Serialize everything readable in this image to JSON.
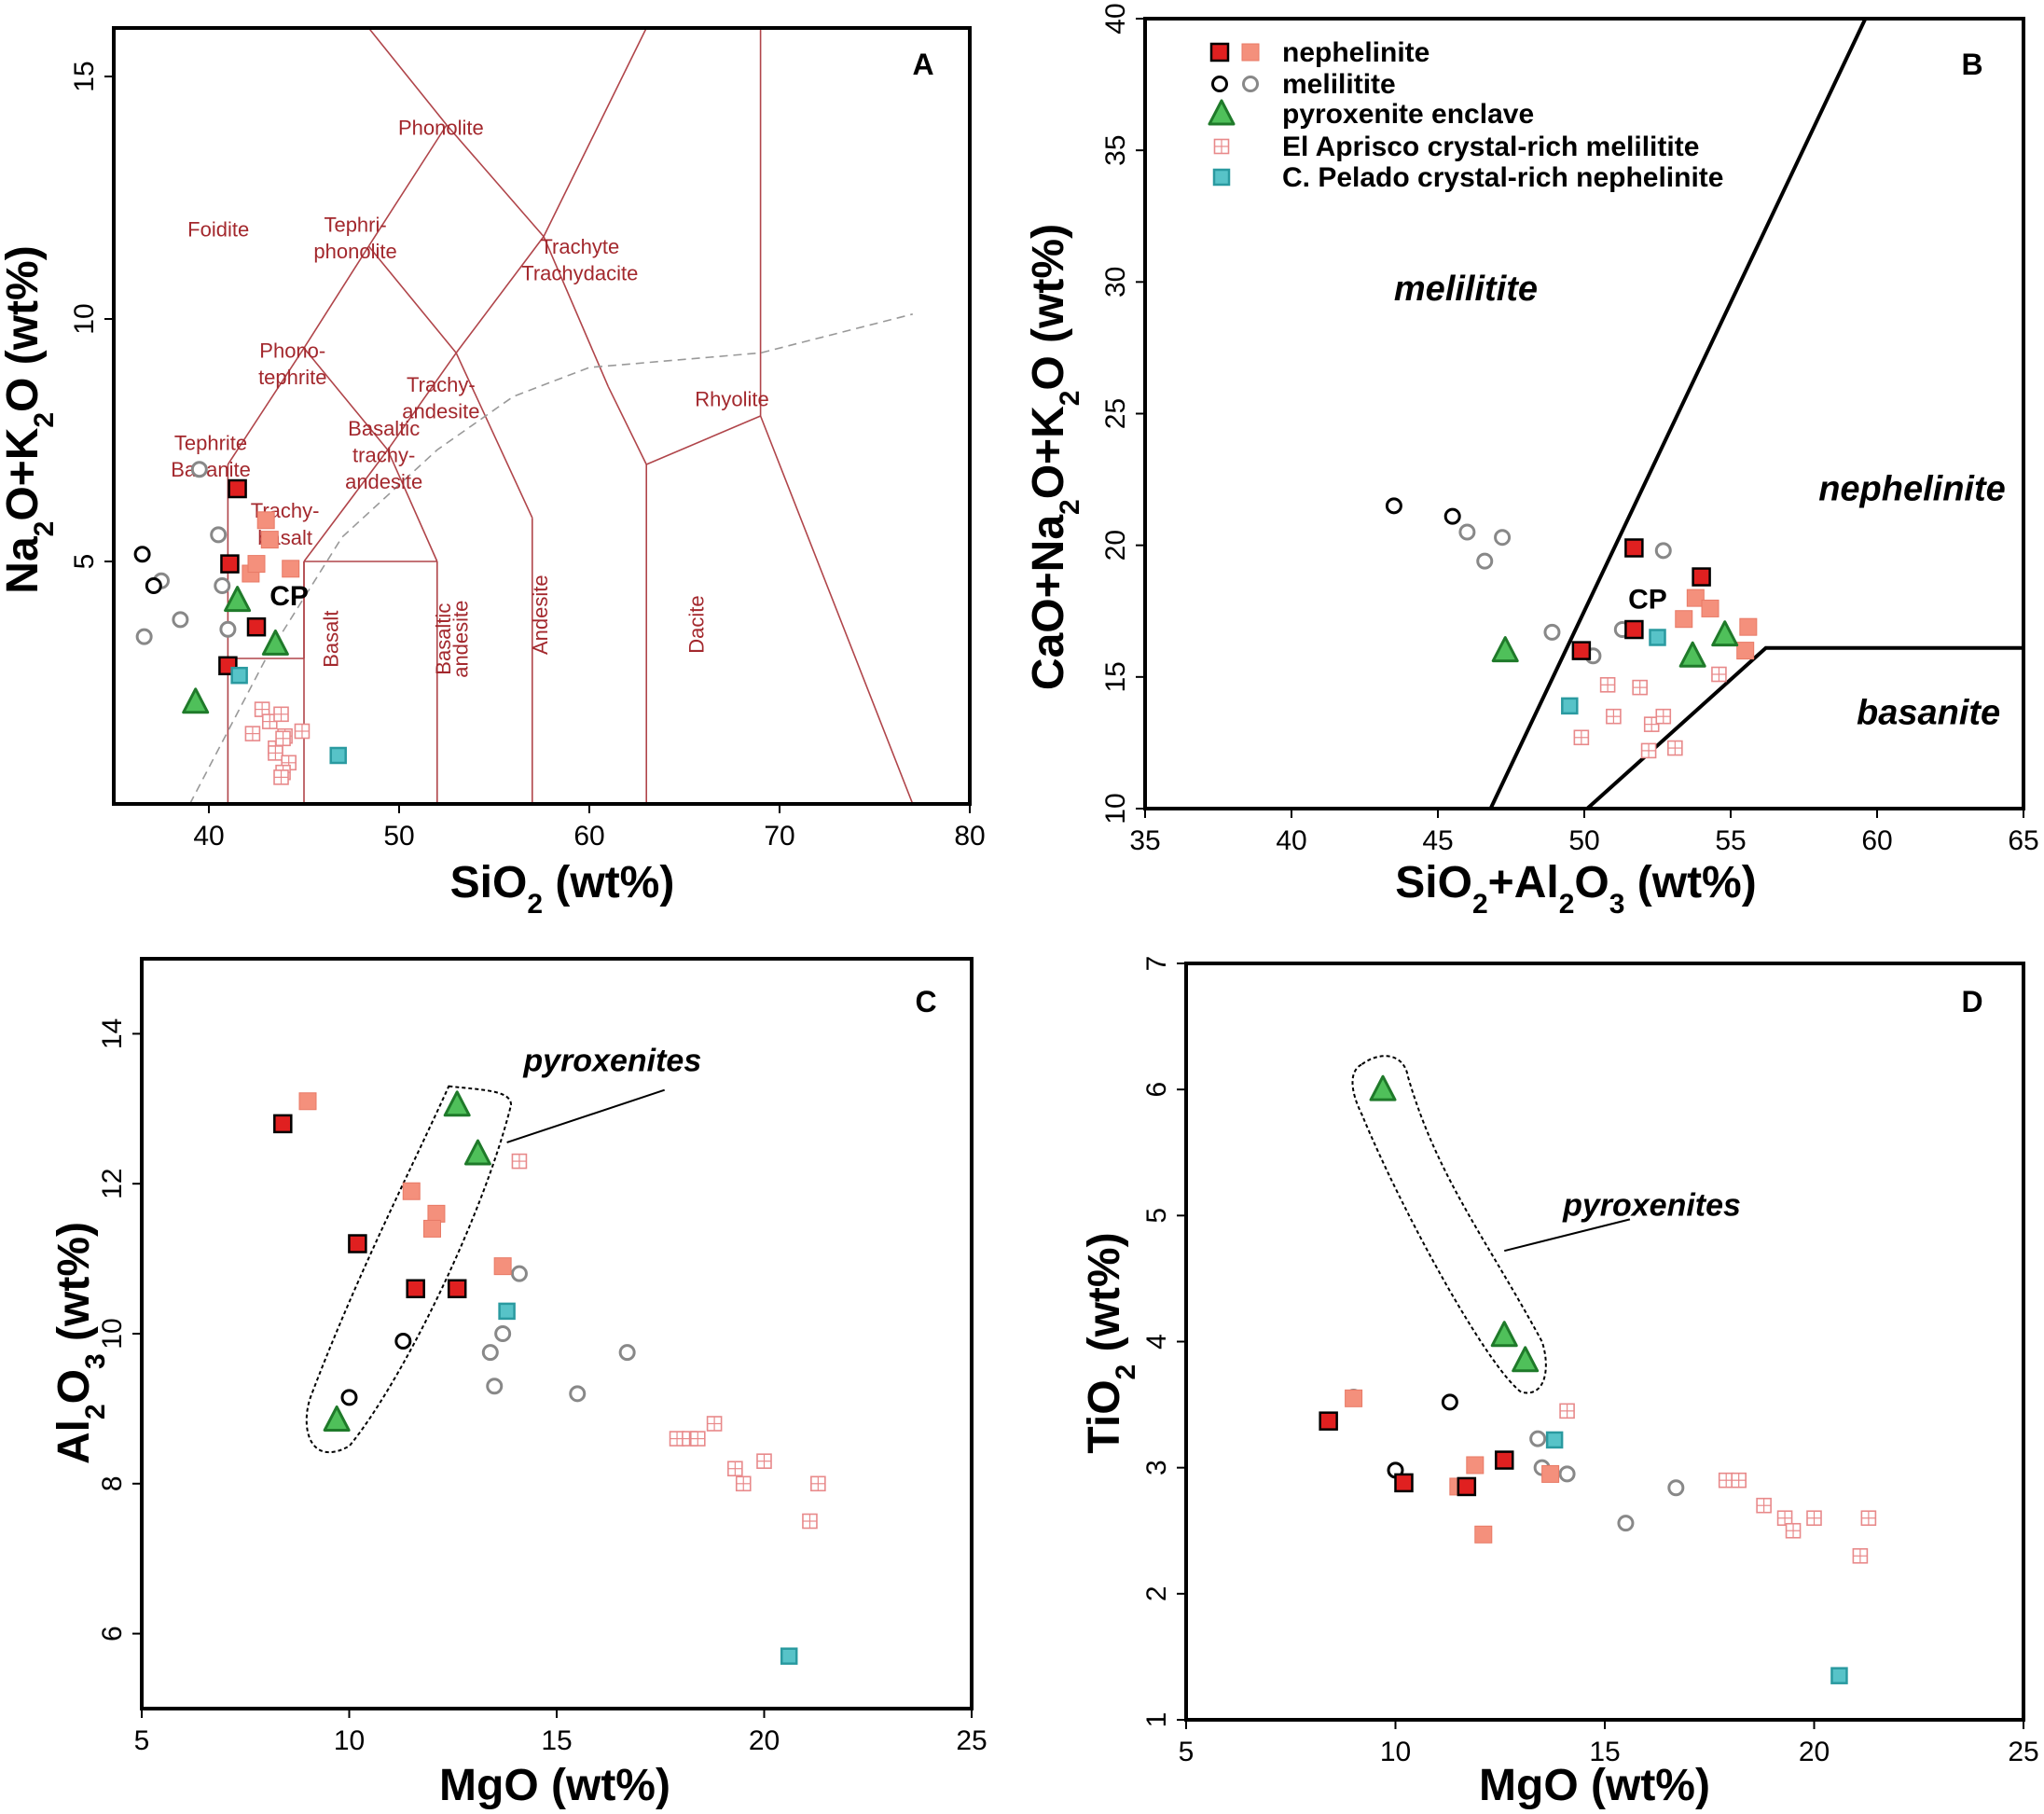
{
  "colors": {
    "nephelinite_dark": "#e02020",
    "nephelinite_light": "#f4907c",
    "melilitite_dark": "#000000",
    "melilitite_light": "#888888",
    "pyroxenite_fill": "#4fc05a",
    "pyroxenite_edge": "#1f7a2a",
    "aprisco": "#e8898a",
    "pelado": "#57c3c8",
    "tas_line": "#b0454a"
  },
  "legend": {
    "items": [
      {
        "label": "nephelinite",
        "symbols": [
          "neph_dark",
          "neph_light"
        ]
      },
      {
        "label": "melilitite",
        "symbols": [
          "mel_dark",
          "mel_light"
        ]
      },
      {
        "label": "pyroxenite enclave",
        "symbols": [
          "pyx"
        ]
      },
      {
        "label": "El Aprisco crystal-rich melilitite",
        "symbols": [
          "apr"
        ]
      },
      {
        "label": "C. Pelado crystal-rich nephelinite",
        "symbols": [
          "pel"
        ]
      }
    ]
  },
  "chart_data": [
    {
      "panel": "A",
      "type": "scatter",
      "xlabel": "SiO₂ (wt%)",
      "ylabel": "Na₂O+K₂O (wt%)",
      "xlim": [
        35,
        80
      ],
      "ylim": [
        0,
        16
      ],
      "xticks": [
        "40",
        "50",
        "60",
        "70",
        "80"
      ],
      "yticks": [
        "5",
        "10",
        "15"
      ],
      "field_labels": [
        {
          "text": "Foidite",
          "x": 40.5,
          "y": 11.7
        },
        {
          "text": "Phonolite",
          "x": 52.2,
          "y": 13.8
        },
        {
          "text": "Tephri-",
          "x": 47.7,
          "y": 11.8
        },
        {
          "text": "phonolite",
          "x": 47.7,
          "y": 11.25
        },
        {
          "text": "Trachyte",
          "x": 59.5,
          "y": 11.35
        },
        {
          "text": "Trachydacite",
          "x": 59.5,
          "y": 10.8
        },
        {
          "text": "Phono-",
          "x": 44.4,
          "y": 9.2
        },
        {
          "text": "tephrite",
          "x": 44.4,
          "y": 8.65
        },
        {
          "text": "Trachy-",
          "x": 52.2,
          "y": 8.5
        },
        {
          "text": "andesite",
          "x": 52.2,
          "y": 7.95
        },
        {
          "text": "Rhyolite",
          "x": 67.5,
          "y": 8.2
        },
        {
          "text": "Tephrite",
          "x": 40.1,
          "y": 7.3
        },
        {
          "text": "Basanite",
          "x": 40.1,
          "y": 6.75
        },
        {
          "text": "Basaltic",
          "x": 49.2,
          "y": 7.6
        },
        {
          "text": "trachy-",
          "x": 49.2,
          "y": 7.05
        },
        {
          "text": "andesite",
          "x": 49.2,
          "y": 6.5
        },
        {
          "text": "Trachy-",
          "x": 44.0,
          "y": 5.9
        },
        {
          "text": "basalt",
          "x": 44.0,
          "y": 5.35
        }
      ],
      "rotated_labels": [
        {
          "text": "Basalt",
          "x": 46.8,
          "y": 3.4
        },
        {
          "text": "Basaltic",
          "x": 52.7,
          "y": 3.4
        },
        {
          "text": "andesite",
          "x": 53.6,
          "y": 3.4
        },
        {
          "text": "Andesite",
          "x": 57.8,
          "y": 3.9
        },
        {
          "text": "Dacite",
          "x": 66.0,
          "y": 3.7
        }
      ],
      "cp_label": {
        "text": "CP",
        "x": 43.2,
        "y": 4.1
      },
      "series": {
        "neph_dark": [
          [
            41.5,
            6.5
          ],
          [
            41.1,
            4.95
          ],
          [
            42.5,
            3.65
          ],
          [
            41.0,
            2.85
          ]
        ],
        "neph_light": [
          [
            42.2,
            4.75
          ],
          [
            42.5,
            4.95
          ],
          [
            43.0,
            5.85
          ],
          [
            43.2,
            5.45
          ],
          [
            44.3,
            4.85
          ]
        ],
        "mel_dark": [
          [
            36.5,
            5.15
          ],
          [
            37.1,
            4.5
          ]
        ],
        "mel_light": [
          [
            39.5,
            6.9
          ],
          [
            40.5,
            5.55
          ],
          [
            40.7,
            4.5
          ],
          [
            41.0,
            3.6
          ],
          [
            37.5,
            4.6
          ],
          [
            38.5,
            3.8
          ],
          [
            36.6,
            3.45
          ]
        ],
        "pyx": [
          [
            41.5,
            4.2
          ],
          [
            43.5,
            3.3
          ],
          [
            39.3,
            2.1
          ]
        ],
        "apr": [
          [
            42.8,
            1.95
          ],
          [
            43.2,
            1.7
          ],
          [
            43.8,
            1.85
          ],
          [
            44.0,
            1.4
          ],
          [
            44.9,
            1.5
          ],
          [
            42.3,
            1.45
          ],
          [
            43.5,
            1.15
          ],
          [
            43.5,
            1.05
          ],
          [
            44.2,
            0.85
          ],
          [
            43.9,
            0.65
          ],
          [
            43.8,
            0.55
          ],
          [
            43.9,
            1.35
          ]
        ],
        "pel": [
          [
            41.6,
            2.65
          ],
          [
            46.8,
            1.0
          ]
        ]
      }
    },
    {
      "panel": "B",
      "type": "scatter",
      "xlabel": "SiO₂+Al₂O₃ (wt%)",
      "ylabel": "CaO+Na₂O+K₂O (wt%)",
      "xlim": [
        35,
        65
      ],
      "ylim": [
        10,
        40
      ],
      "xticks": [
        "35",
        "40",
        "45",
        "50",
        "55",
        "60",
        "65"
      ],
      "yticks": [
        "10",
        "15",
        "20",
        "25",
        "30",
        "35",
        "40"
      ],
      "field_labels": [
        {
          "text": "melilitite",
          "x": 43.5,
          "y": 29.3
        },
        {
          "text": "nephelinite",
          "x": 58.0,
          "y": 21.7
        },
        {
          "text": "basanite",
          "x": 59.3,
          "y": 13.2
        }
      ],
      "cp_label": {
        "text": "CP",
        "x": 51.5,
        "y": 17.6
      },
      "series": {
        "neph_dark": [
          [
            51.7,
            19.9
          ],
          [
            54.0,
            18.8
          ],
          [
            49.9,
            16.0
          ],
          [
            51.7,
            16.8
          ]
        ],
        "neph_light": [
          [
            53.8,
            18.0
          ],
          [
            54.3,
            17.6
          ],
          [
            55.6,
            16.9
          ],
          [
            53.4,
            17.2
          ],
          [
            55.5,
            16.0
          ]
        ],
        "mel_dark": [
          [
            43.5,
            21.5
          ],
          [
            45.5,
            21.1
          ]
        ],
        "mel_light": [
          [
            46.0,
            20.5
          ],
          [
            46.6,
            19.4
          ],
          [
            47.2,
            20.3
          ],
          [
            48.9,
            16.7
          ],
          [
            50.3,
            15.8
          ],
          [
            51.3,
            16.8
          ],
          [
            52.7,
            19.8
          ]
        ],
        "pyx": [
          [
            47.3,
            16.0
          ],
          [
            53.7,
            15.8
          ],
          [
            54.8,
            16.6
          ]
        ],
        "apr": [
          [
            50.8,
            14.7
          ],
          [
            51.0,
            13.5
          ],
          [
            51.9,
            14.6
          ],
          [
            52.3,
            13.2
          ],
          [
            52.7,
            13.5
          ],
          [
            52.2,
            12.2
          ],
          [
            53.1,
            12.3
          ],
          [
            54.6,
            15.1
          ],
          [
            49.9,
            12.7
          ]
        ],
        "pel": [
          [
            49.5,
            13.9
          ],
          [
            52.5,
            16.5
          ]
        ]
      }
    },
    {
      "panel": "C",
      "type": "scatter",
      "xlabel": "MgO (wt%)",
      "ylabel": "Al₂O₃ (wt%)",
      "xlim": [
        5,
        25
      ],
      "ylim": [
        5,
        15
      ],
      "xticks": [
        "5",
        "10",
        "15",
        "20",
        "25"
      ],
      "yticks": [
        "6",
        "8",
        "10",
        "12",
        "14"
      ],
      "annotation": "pyroxenites",
      "series": {
        "neph_dark": [
          [
            8.4,
            12.8
          ],
          [
            10.2,
            11.2
          ],
          [
            11.6,
            10.6
          ],
          [
            12.6,
            10.6
          ]
        ],
        "neph_light": [
          [
            9.0,
            13.1
          ],
          [
            11.5,
            11.9
          ],
          [
            12.1,
            11.6
          ],
          [
            12.0,
            11.4
          ],
          [
            13.7,
            10.9
          ]
        ],
        "mel_dark": [
          [
            11.3,
            9.9
          ],
          [
            10.0,
            9.15
          ]
        ],
        "mel_light": [
          [
            14.1,
            10.8
          ],
          [
            13.7,
            10.0
          ],
          [
            13.4,
            9.75
          ],
          [
            13.5,
            9.3
          ],
          [
            15.5,
            9.2
          ],
          [
            16.7,
            9.75
          ]
        ],
        "pyx": [
          [
            12.6,
            13.05
          ],
          [
            13.1,
            12.4
          ],
          [
            9.7,
            8.85
          ]
        ],
        "apr": [
          [
            14.1,
            12.3
          ],
          [
            17.9,
            8.6
          ],
          [
            18.2,
            8.6
          ],
          [
            18.4,
            8.6
          ],
          [
            18.8,
            8.8
          ],
          [
            19.3,
            8.2
          ],
          [
            19.5,
            8.0
          ],
          [
            20.0,
            8.3
          ],
          [
            21.1,
            7.5
          ],
          [
            21.3,
            8.0
          ]
        ],
        "pel": [
          [
            13.8,
            10.3
          ],
          [
            20.6,
            5.7
          ]
        ]
      }
    },
    {
      "panel": "D",
      "type": "scatter",
      "xlabel": "MgO (wt%)",
      "ylabel": "TiO₂ (wt%)",
      "xlim": [
        5,
        25
      ],
      "ylim": [
        1,
        7
      ],
      "xticks": [
        "5",
        "10",
        "15",
        "20",
        "25"
      ],
      "yticks": [
        "1",
        "2",
        "3",
        "4",
        "5",
        "6",
        "7"
      ],
      "annotation": "pyroxenites",
      "series": {
        "neph_dark": [
          [
            8.4,
            3.37
          ],
          [
            10.2,
            2.88
          ],
          [
            11.7,
            2.85
          ],
          [
            12.6,
            3.06
          ]
        ],
        "neph_light": [
          [
            9.0,
            3.55
          ],
          [
            11.5,
            2.85
          ],
          [
            11.9,
            3.02
          ],
          [
            12.1,
            2.47
          ],
          [
            13.7,
            2.95
          ]
        ],
        "mel_dark": [
          [
            10.0,
            2.98
          ],
          [
            11.3,
            3.52
          ]
        ],
        "mel_light": [
          [
            9.0,
            3.56
          ],
          [
            13.4,
            3.23
          ],
          [
            13.5,
            3.0
          ],
          [
            14.1,
            2.95
          ],
          [
            15.5,
            2.56
          ],
          [
            16.7,
            2.84
          ]
        ],
        "pyx": [
          [
            9.7,
            6.0
          ],
          [
            12.6,
            4.05
          ],
          [
            13.1,
            3.85
          ]
        ],
        "apr": [
          [
            14.1,
            3.45
          ],
          [
            17.9,
            2.9
          ],
          [
            18.2,
            2.9
          ],
          [
            18.8,
            2.7
          ],
          [
            19.3,
            2.6
          ],
          [
            19.5,
            2.5
          ],
          [
            20.0,
            2.6
          ],
          [
            21.1,
            2.3
          ],
          [
            21.3,
            2.6
          ]
        ],
        "pel": [
          [
            13.8,
            3.22
          ],
          [
            20.6,
            1.35
          ]
        ]
      }
    }
  ]
}
